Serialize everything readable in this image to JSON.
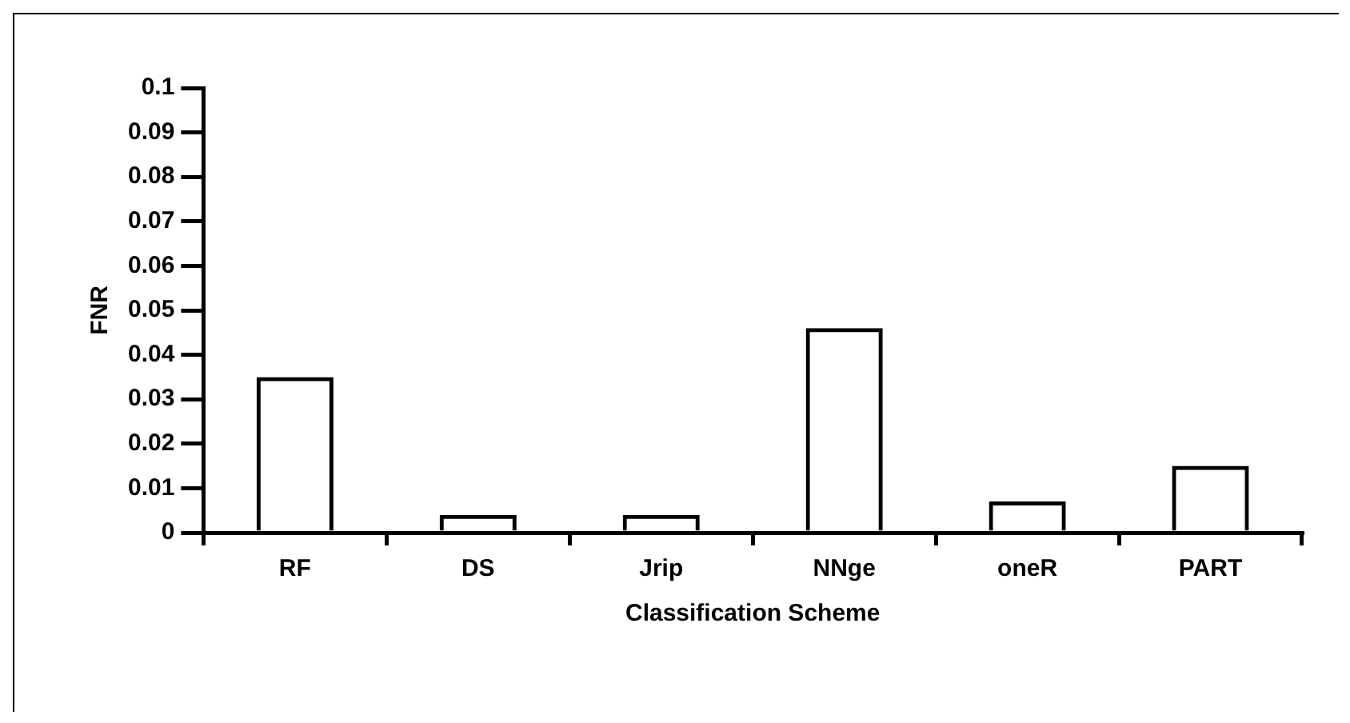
{
  "chart_data": {
    "type": "bar",
    "xlabel": "Classification Scheme",
    "ylabel": "FNR",
    "categories": [
      "RF",
      "DS",
      "Jrip",
      "NNge",
      "oneR",
      "PART"
    ],
    "values": [
      0.035,
      0.004,
      0.004,
      0.046,
      0.007,
      0.015
    ],
    "color": "#000000",
    "ylim": [
      0,
      0.1
    ],
    "yticks": [
      0,
      0.01,
      0.02,
      0.03,
      0.04,
      0.05,
      0.06,
      0.07,
      0.08,
      0.09,
      0.1
    ],
    "grid": false,
    "legend": false
  }
}
